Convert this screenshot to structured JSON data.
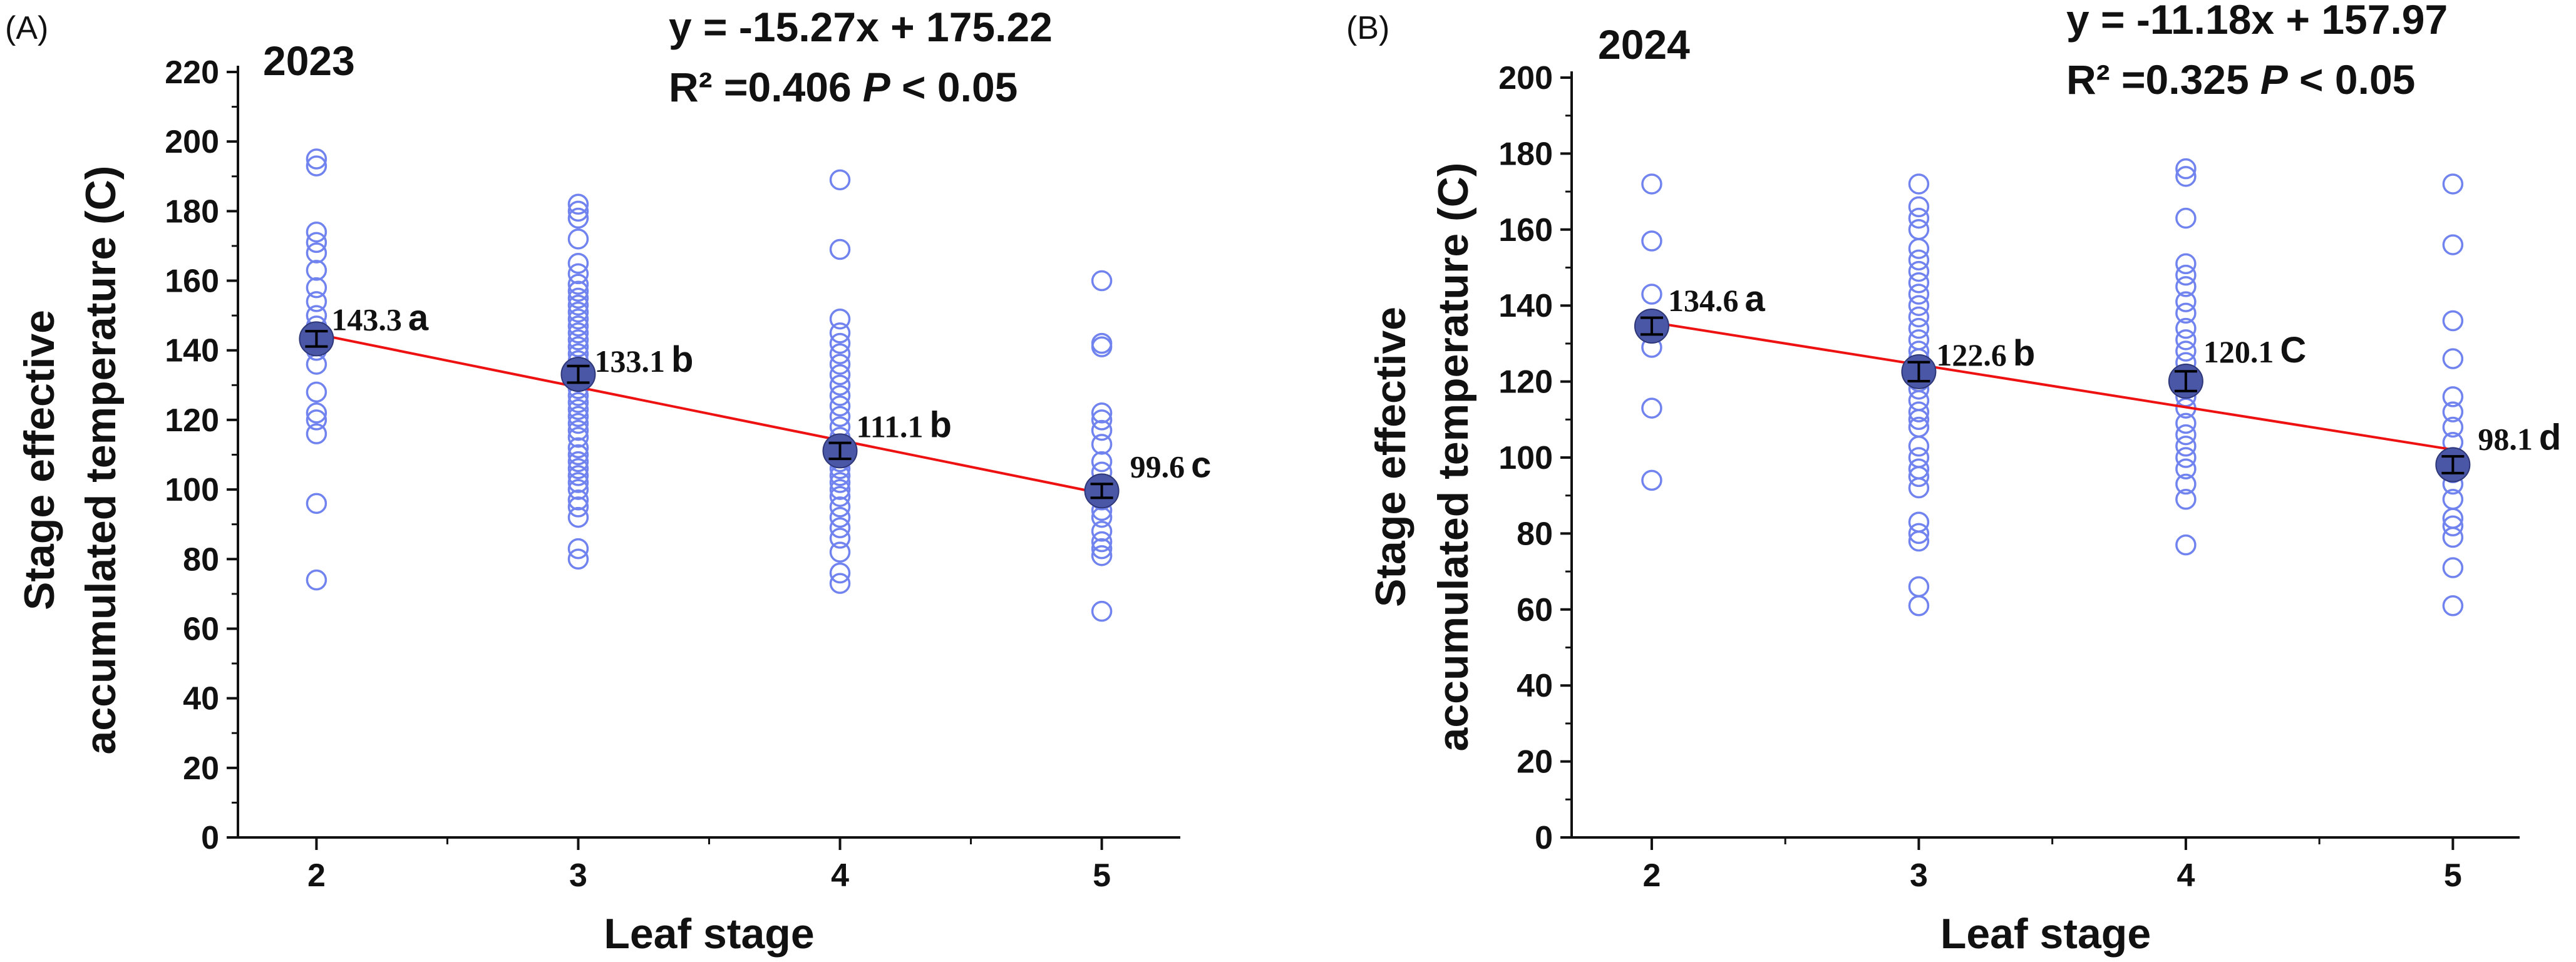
{
  "colors": {
    "points": "#7183ee",
    "mean_marker": "#4a56a6",
    "fit_line": "#ee1111",
    "axis": "#111111"
  },
  "chart_data": [
    {
      "panel_label": "(A)",
      "year_label": "2023",
      "type": "scatter",
      "equation": "y = -15.27x + 175.22",
      "r2_text": "R² =0.406",
      "p_symbol": "P",
      "p_text": " < 0.05",
      "xlabel": "Leaf stage",
      "ylabel_line1": "Stage effective",
      "ylabel_line2": "accumulated temperature (C)",
      "categories": [
        2,
        3,
        4,
        5
      ],
      "xlim": [
        1.7,
        5.3
      ],
      "ylim": [
        0,
        220
      ],
      "y_ticks": [
        0,
        20,
        40,
        60,
        80,
        100,
        120,
        140,
        160,
        180,
        200,
        220
      ],
      "fit": {
        "slope": -15.27,
        "intercept": 175.22
      },
      "points": [
        [
          74,
          96,
          116,
          120,
          122,
          128,
          136,
          140,
          144,
          147,
          150,
          154,
          158,
          163,
          168,
          171,
          174,
          193,
          195
        ],
        [
          80,
          83,
          92,
          95,
          97,
          100,
          102,
          104,
          106,
          108,
          110,
          112,
          115,
          117,
          119,
          121,
          123,
          125,
          127,
          129,
          131,
          133,
          135,
          137,
          139,
          141,
          143,
          145,
          147,
          149,
          151,
          153,
          155,
          157,
          159,
          162,
          165,
          172,
          178,
          180,
          182
        ],
        [
          73,
          76,
          82,
          86,
          89,
          92,
          95,
          98,
          100,
          102,
          104,
          106,
          108,
          110,
          112,
          115,
          118,
          121,
          124,
          127,
          130,
          133,
          136,
          139,
          142,
          145,
          149,
          169,
          189
        ],
        [
          65,
          81,
          83,
          85,
          88,
          92,
          94,
          97,
          100,
          105,
          108,
          113,
          117,
          120,
          122,
          141,
          142,
          160
        ]
      ],
      "means": [
        {
          "x": 2,
          "y": 143.3,
          "err": 2.2,
          "label": "143.3",
          "letter": "a"
        },
        {
          "x": 3,
          "y": 133.1,
          "err": 2.4,
          "label": "133.1",
          "letter": "b"
        },
        {
          "x": 4,
          "y": 111.1,
          "err": 2.3,
          "label": "111.1",
          "letter": "b"
        },
        {
          "x": 5,
          "y": 99.6,
          "err": 2.0,
          "label": "99.6",
          "letter": "c"
        }
      ]
    },
    {
      "panel_label": "(B)",
      "year_label": "2024",
      "type": "scatter",
      "equation": "y = -11.18x + 157.97",
      "r2_text": "R² =0.325",
      "p_symbol": "P",
      "p_text": " < 0.05",
      "xlabel": "Leaf stage",
      "ylabel_line1": "Stage effective",
      "ylabel_line2": "accumulated temperature (C)",
      "categories": [
        2,
        3,
        4,
        5
      ],
      "xlim": [
        1.7,
        5.25
      ],
      "ylim": [
        0,
        200
      ],
      "y_ticks": [
        0,
        20,
        40,
        60,
        80,
        100,
        120,
        140,
        160,
        180,
        200
      ],
      "fit": {
        "slope": -11.18,
        "intercept": 157.97
      },
      "points": [
        [
          94,
          113,
          129,
          134,
          143,
          157,
          172
        ],
        [
          61,
          66,
          78,
          80,
          83,
          92,
          95,
          97,
          100,
          103,
          108,
          110,
          112,
          115,
          118,
          120,
          122,
          124,
          126,
          128,
          131,
          134,
          137,
          140,
          143,
          146,
          149,
          152,
          155,
          160,
          163,
          166,
          172
        ],
        [
          77,
          89,
          93,
          97,
          100,
          103,
          106,
          109,
          113,
          116,
          119,
          122,
          125,
          128,
          131,
          134,
          138,
          141,
          145,
          148,
          151,
          163,
          174,
          176
        ],
        [
          61,
          71,
          79,
          82,
          84,
          89,
          93,
          96,
          100,
          104,
          108,
          112,
          116,
          126,
          136,
          156,
          172
        ]
      ],
      "means": [
        {
          "x": 2,
          "y": 134.6,
          "err": 2.2,
          "label": "134.6",
          "letter": "a"
        },
        {
          "x": 3,
          "y": 122.6,
          "err": 2.5,
          "label": "122.6",
          "letter": "b"
        },
        {
          "x": 4,
          "y": 120.1,
          "err": 2.6,
          "label": "120.1",
          "letter": "C"
        },
        {
          "x": 5,
          "y": 98.1,
          "err": 2.2,
          "label": "98.1",
          "letter": "d"
        }
      ]
    }
  ]
}
